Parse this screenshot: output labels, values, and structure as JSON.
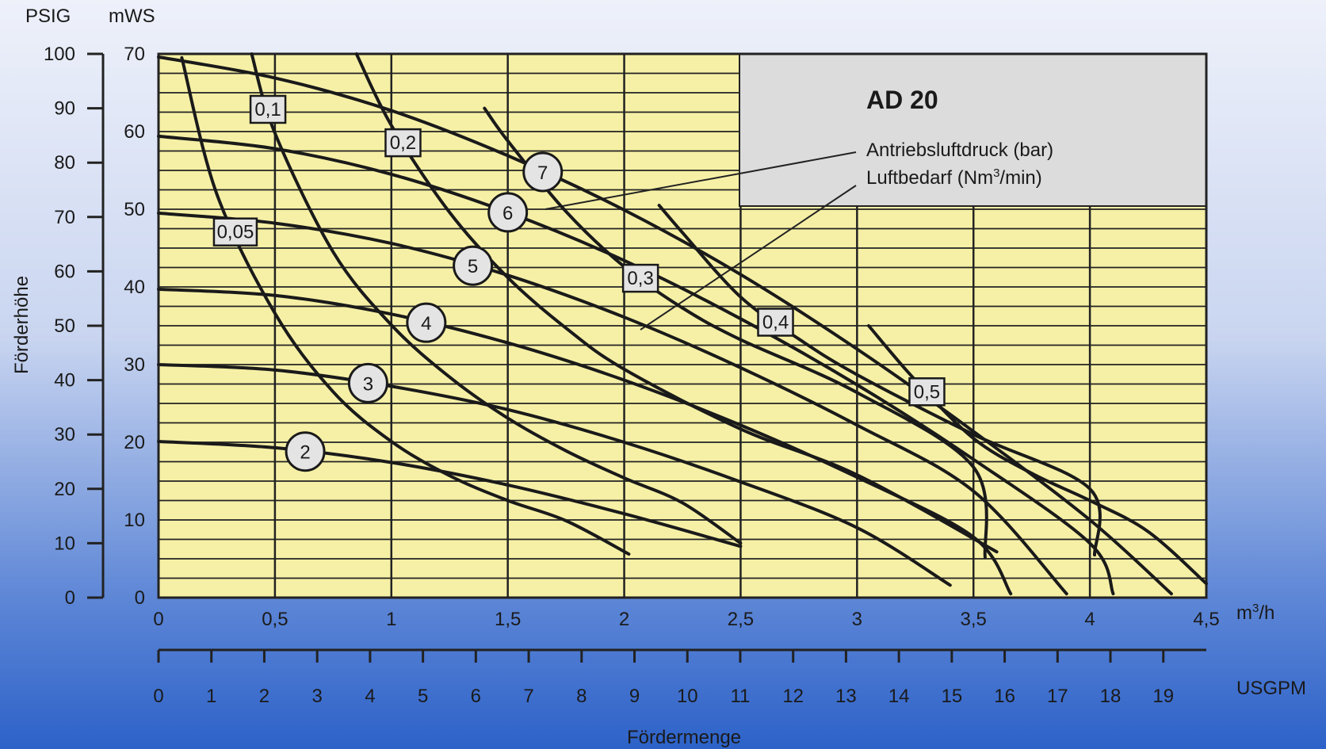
{
  "chart_data": {
    "type": "line",
    "title": "AD 20",
    "legend": {
      "title": "AD 20",
      "line1": "Antriebsluftdruck (bar)",
      "line2_prefix": "Luftbedarf (Nm",
      "line2_sup": "3",
      "line2_suffix": "/min)",
      "placement": "top-right"
    },
    "xlabel": "Fördermenge",
    "x_unit_main_prefix": "m",
    "x_unit_main_sup": "3",
    "x_unit_main_suffix": "/h",
    "x_unit_secondary": "USGPM",
    "ylabel": "Förderhöhe",
    "y_unit_left": "PSIG",
    "y_unit_right": "mWS",
    "xlim": [
      0,
      4.5
    ],
    "ylim": [
      0,
      70
    ],
    "grid": true,
    "x_ticks": [
      "0",
      "0,5",
      "1",
      "1,5",
      "2",
      "2,5",
      "3",
      "3,5",
      "4",
      "4,5"
    ],
    "usgpm_ticks": [
      "0",
      "1",
      "2",
      "3",
      "4",
      "5",
      "6",
      "7",
      "8",
      "9",
      "10",
      "11",
      "12",
      "13",
      "14",
      "15",
      "16",
      "17",
      "18",
      "19"
    ],
    "psig_ticks": [
      "0",
      "10",
      "20",
      "30",
      "40",
      "50",
      "60",
      "70",
      "80",
      "90",
      "100"
    ],
    "mws_ticks": [
      "0",
      "10",
      "20",
      "30",
      "40",
      "50",
      "60",
      "70"
    ],
    "pressure_series": [
      {
        "name": "2",
        "x": [
          0,
          0.5,
          1,
          1.5,
          2,
          2.5
        ],
        "y": [
          20.1,
          19.3,
          17.4,
          14.5,
          10.8,
          6.6
        ]
      },
      {
        "name": "3",
        "x": [
          0,
          0.5,
          1,
          1.5,
          2,
          2.5,
          3,
          3.4
        ],
        "y": [
          30.0,
          29.3,
          27.2,
          24.2,
          20.0,
          14.9,
          9.0,
          1.6
        ]
      },
      {
        "name": "4",
        "x": [
          0,
          0.5,
          1,
          1.5,
          2,
          2.5,
          3,
          3.5,
          3.66
        ],
        "y": [
          39.7,
          38.9,
          36.5,
          32.8,
          28.0,
          22.2,
          15.5,
          7.8,
          0.5
        ]
      },
      {
        "name": "5",
        "x": [
          0,
          0.5,
          1,
          1.5,
          2,
          2.5,
          3,
          3.5,
          3.9
        ],
        "y": [
          49.5,
          48.2,
          45.6,
          41.5,
          36.1,
          29.6,
          22.2,
          13.7,
          0.5
        ]
      },
      {
        "name": "6",
        "x": [
          0,
          0.5,
          1,
          1.5,
          2,
          2.5,
          3,
          3.5,
          4,
          4.1
        ],
        "y": [
          59.4,
          57.8,
          54.5,
          49.6,
          43.4,
          35.9,
          27.4,
          17.8,
          7.0,
          0.5
        ]
      },
      {
        "name": "7",
        "x": [
          0,
          0.5,
          1,
          1.5,
          2,
          2.5,
          3,
          3.5,
          4,
          4.35
        ],
        "y": [
          69.6,
          66.9,
          62.7,
          56.9,
          49.9,
          41.6,
          32.0,
          21.4,
          10.0,
          0.5
        ]
      }
    ],
    "air_series": [
      {
        "name": "0,05",
        "x": [
          0.1,
          0.25,
          0.5,
          0.75,
          1,
          1.25,
          1.5,
          1.75,
          2.02
        ],
        "y": [
          69.5,
          52.0,
          36.6,
          26.5,
          20.1,
          15.7,
          12.5,
          9.9,
          5.6
        ]
      },
      {
        "name": "0,1",
        "x": [
          0.4,
          0.5,
          0.75,
          1,
          1.25,
          1.5,
          1.75,
          2,
          2.25,
          2.5
        ],
        "y": [
          70.0,
          59.8,
          44.5,
          35.1,
          28.4,
          23.1,
          18.9,
          15.4,
          12.2,
          7.0
        ]
      },
      {
        "name": "0,2",
        "x": [
          0.85,
          1,
          1.25,
          1.5,
          1.75,
          2,
          2.5,
          3,
          3.6
        ],
        "y": [
          70.0,
          60.8,
          49.6,
          41.2,
          34.7,
          29.4,
          21.7,
          15.8,
          5.9
        ]
      },
      {
        "name": "0,3",
        "x": [
          1.4,
          1.5,
          1.75,
          2,
          2.25,
          2.5,
          3,
          3.5,
          3.55
        ],
        "y": [
          63.0,
          58.8,
          49.7,
          42.6,
          37.3,
          33.2,
          26.4,
          16.8,
          5.2
        ]
      },
      {
        "name": "0,4",
        "x": [
          2.15,
          2.25,
          2.5,
          2.75,
          3,
          3.5,
          4,
          4.02
        ],
        "y": [
          50.5,
          47.0,
          38.7,
          33.3,
          28.7,
          21.0,
          14.0,
          5.5
        ]
      },
      {
        "name": "0,5",
        "x": [
          3.05,
          3.25,
          3.5,
          3.75,
          4,
          4.25,
          4.5
        ],
        "y": [
          35.0,
          28.0,
          20.5,
          16.0,
          12.5,
          8.5,
          1.8
        ]
      }
    ]
  }
}
